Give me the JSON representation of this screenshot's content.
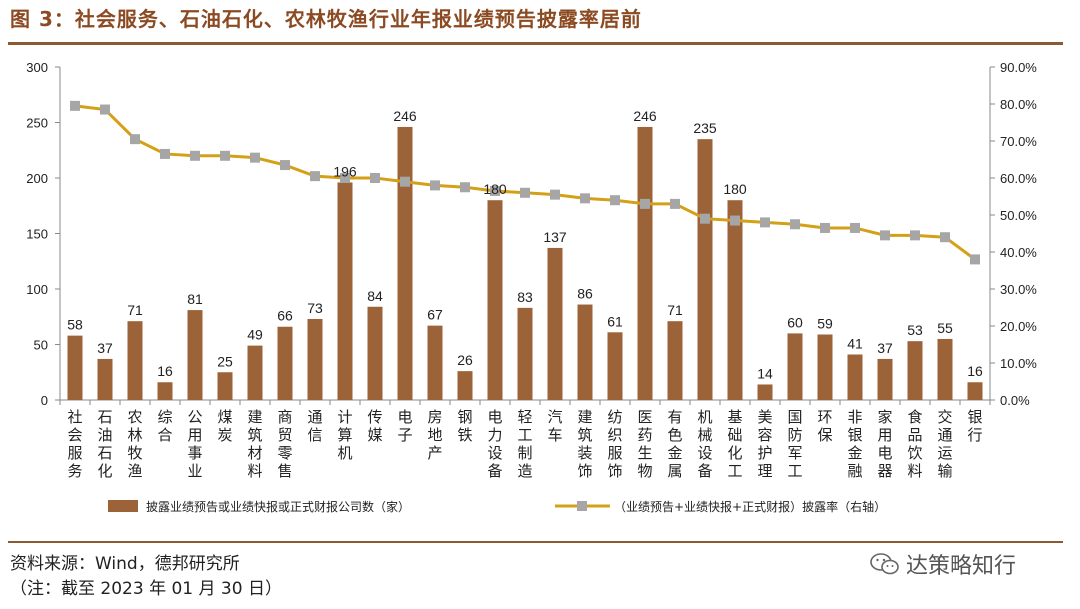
{
  "header": {
    "title": "图 3：社会服务、石油石化、农林牧渔行业年报业绩预告披露率居前"
  },
  "footer": {
    "source": "资料来源：Wind，德邦研究所",
    "note": "（注：截至 2023 年 01 月 30 日）",
    "watermark": "达策略知行"
  },
  "colors": {
    "bar": "#9C6339",
    "line": "#D4A017",
    "marker": "#A6A6A6",
    "rule": "#8B5A33",
    "title": "#8B4A22"
  },
  "chart_data": {
    "type": "bar+line",
    "categories": [
      "社会服务",
      "石油石化",
      "农林牧渔",
      "综合",
      "公用事业",
      "煤炭",
      "建筑材料",
      "商贸零售",
      "通信",
      "计算机",
      "传媒",
      "电子",
      "房地产",
      "钢铁",
      "电力设备",
      "轻工制造",
      "汽车",
      "建筑装饰",
      "纺织服饰",
      "医药生物",
      "有色金属",
      "机械设备",
      "基础化工",
      "美容护理",
      "国防军工",
      "环保",
      "非银金融",
      "家用电器",
      "食品饮料",
      "交通运输",
      "银行"
    ],
    "series": [
      {
        "name": "披露业绩预告或业绩快报或正式财报公司数（家）",
        "kind": "bar",
        "axis": "left",
        "values": [
          58,
          37,
          71,
          16,
          81,
          25,
          49,
          66,
          73,
          196,
          84,
          246,
          67,
          26,
          180,
          83,
          137,
          86,
          61,
          246,
          71,
          235,
          180,
          14,
          60,
          59,
          41,
          37,
          53,
          55,
          16
        ]
      },
      {
        "name": "（业绩预告+业绩快报+正式财报）披露率（右轴）",
        "kind": "line",
        "axis": "right",
        "values": [
          79.5,
          78.5,
          70.5,
          66.5,
          66.0,
          66.0,
          65.5,
          63.5,
          60.5,
          60.0,
          60.0,
          59.0,
          58.0,
          57.5,
          56.5,
          56.0,
          55.5,
          54.5,
          54.0,
          53.0,
          53.0,
          49.0,
          48.5,
          48.0,
          47.5,
          46.5,
          46.5,
          44.5,
          44.5,
          44.0,
          38.0
        ]
      }
    ],
    "y_left": {
      "min": 0,
      "max": 300,
      "ticks": [
        "0",
        "50",
        "100",
        "150",
        "200",
        "250",
        "300"
      ]
    },
    "y_right": {
      "min": 0,
      "max": 90,
      "ticks": [
        "0.0%",
        "10.0%",
        "20.0%",
        "30.0%",
        "40.0%",
        "50.0%",
        "60.0%",
        "70.0%",
        "80.0%",
        "90.0%"
      ]
    },
    "legend_position": "bottom",
    "grid": false
  }
}
